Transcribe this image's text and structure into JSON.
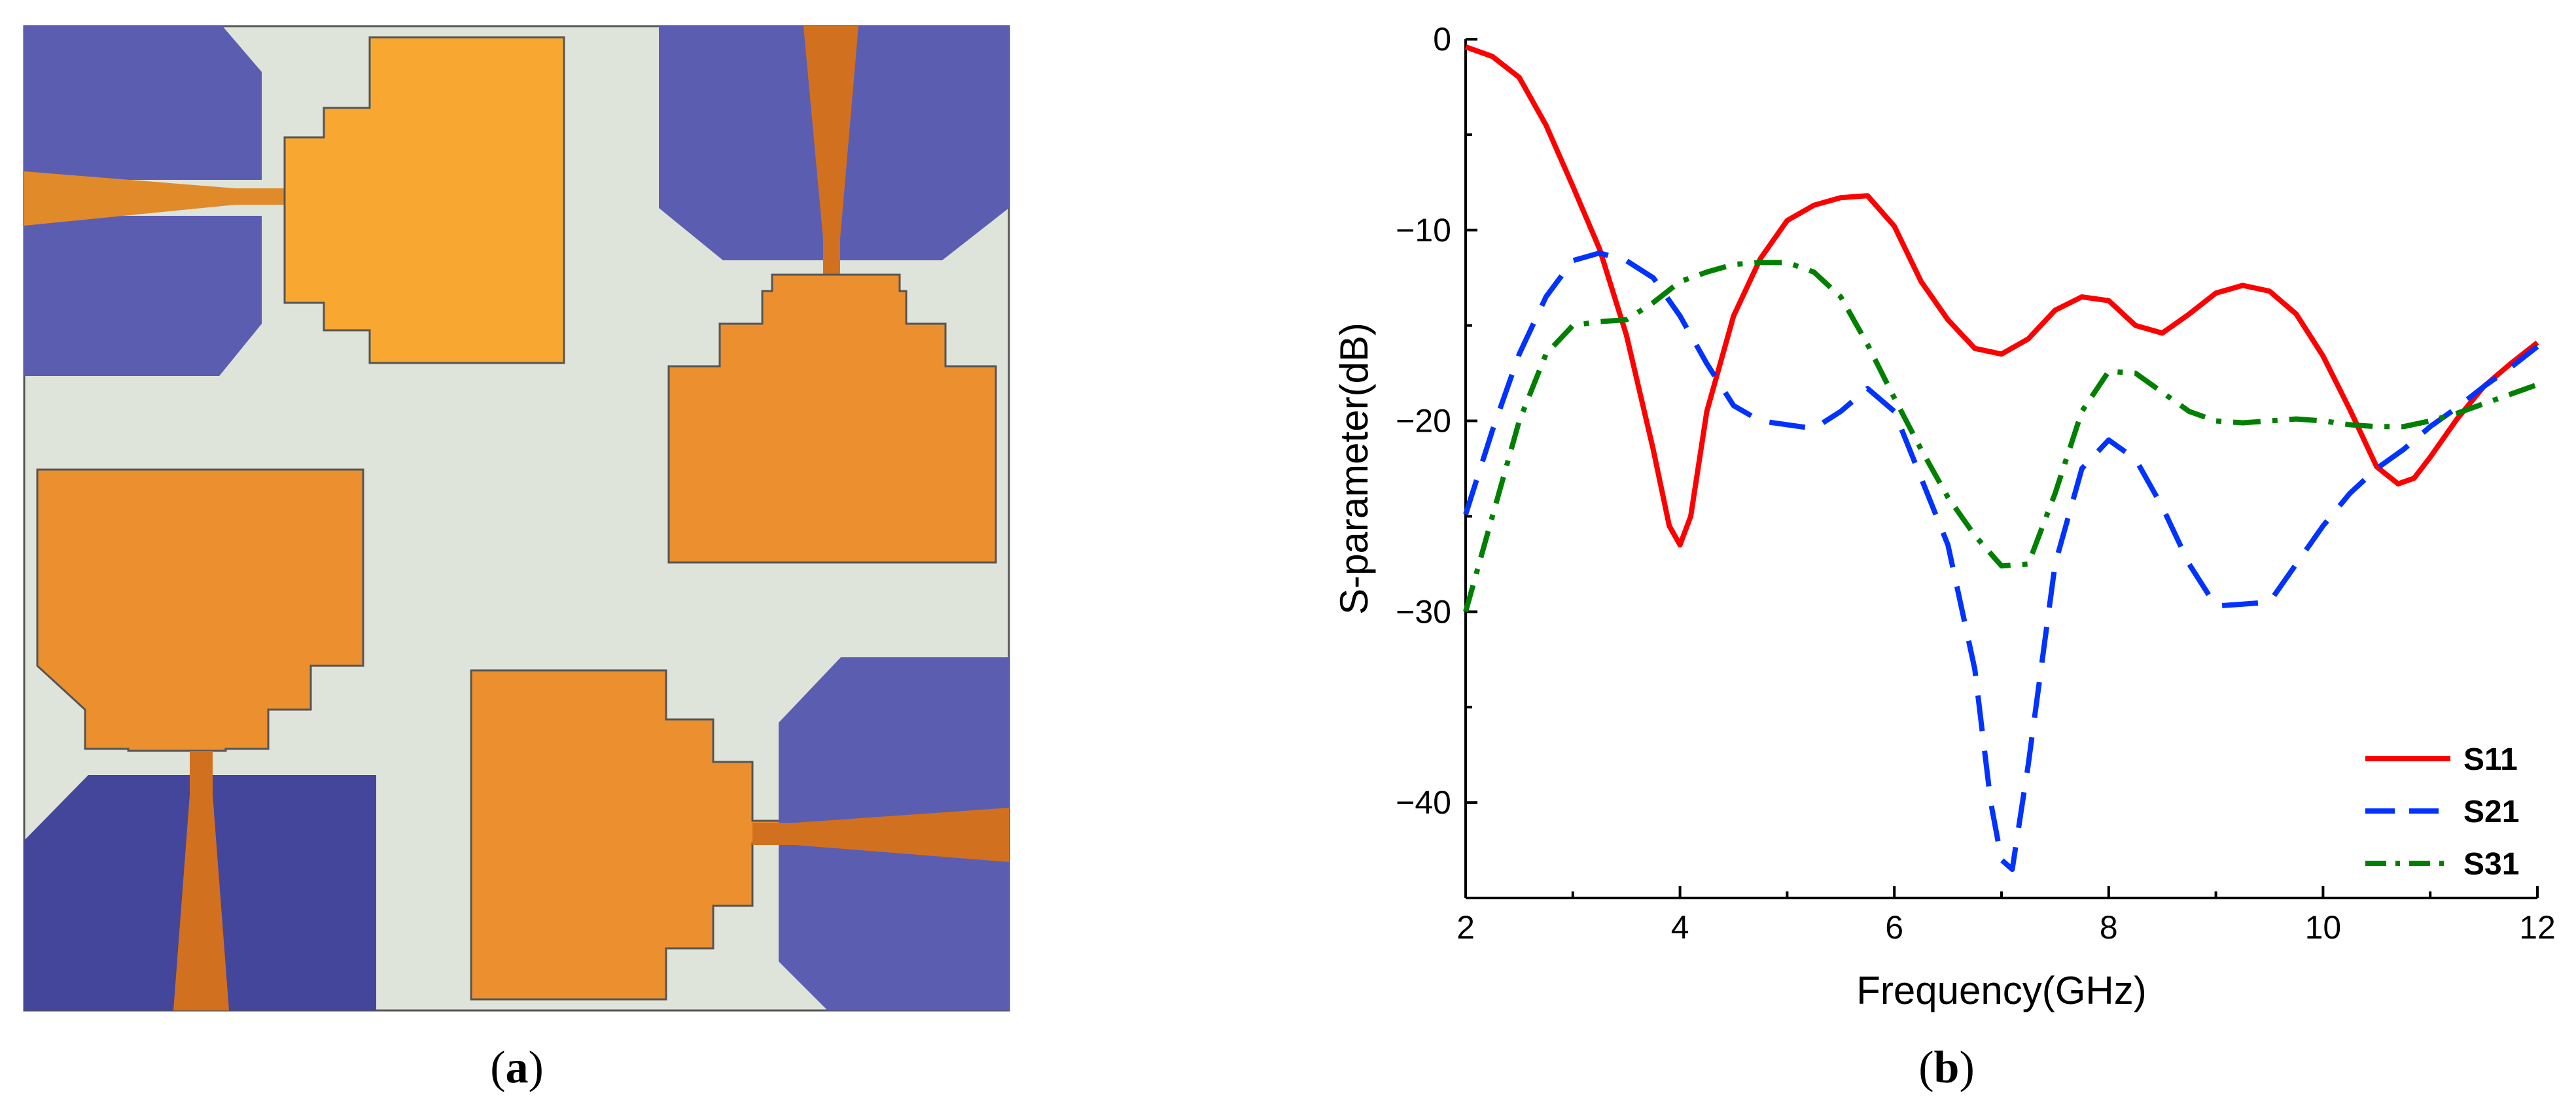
{
  "captions": {
    "a": {
      "open": "(",
      "letter": "a",
      "close": ")"
    },
    "b": {
      "open": "(",
      "letter": "b",
      "close": ")"
    }
  },
  "layout_colors": {
    "background": "#dfe4da",
    "patch": "#ec8f2e",
    "patch_light": "#f8a730",
    "feed": "#d1711f",
    "ground_purple": "#5b5db1",
    "ground_dark": "#43469a",
    "outline": "#555555"
  },
  "chart_data": {
    "type": "line",
    "title": "",
    "xlabel": "Frequency(GHz)",
    "ylabel": "S-parameter(dB)",
    "xlim": [
      2,
      12
    ],
    "ylim": [
      -45,
      0
    ],
    "xticks": [
      2,
      4,
      6,
      8,
      10,
      12
    ],
    "yticks": [
      0,
      -10,
      -20,
      -30,
      -40
    ],
    "ytick_labels": [
      "0",
      "−10",
      "−20",
      "−30",
      "−40"
    ],
    "grid": false,
    "legend_position": "bottom-right",
    "series": [
      {
        "name": "S11",
        "color": "#ff0000",
        "style": "solid",
        "x": [
          2.0,
          2.25,
          2.5,
          2.75,
          3.0,
          3.25,
          3.5,
          3.75,
          3.9,
          4.0,
          4.1,
          4.25,
          4.5,
          4.75,
          5.0,
          5.25,
          5.5,
          5.75,
          6.0,
          6.25,
          6.5,
          6.75,
          7.0,
          7.25,
          7.5,
          7.75,
          8.0,
          8.25,
          8.5,
          8.75,
          9.0,
          9.25,
          9.5,
          9.75,
          10.0,
          10.25,
          10.5,
          10.7,
          10.85,
          11.0,
          11.25,
          11.5,
          11.75,
          12.0
        ],
        "y": [
          -0.4,
          -0.9,
          -2.0,
          -4.5,
          -7.7,
          -11.0,
          -15.5,
          -21.5,
          -25.5,
          -26.5,
          -25.0,
          -19.5,
          -14.5,
          -11.5,
          -9.5,
          -8.7,
          -8.3,
          -8.2,
          -9.8,
          -12.7,
          -14.7,
          -16.2,
          -16.5,
          -15.7,
          -14.2,
          -13.5,
          -13.7,
          -15.0,
          -15.4,
          -14.4,
          -13.3,
          -12.9,
          -13.2,
          -14.4,
          -16.6,
          -19.4,
          -22.4,
          -23.3,
          -23.0,
          -21.9,
          -19.9,
          -18.2,
          -17.0,
          -15.9
        ]
      },
      {
        "name": "S21",
        "color": "#0033ff",
        "style": "dashed",
        "x": [
          2.0,
          2.25,
          2.5,
          2.75,
          3.0,
          3.25,
          3.5,
          3.75,
          4.0,
          4.25,
          4.5,
          4.75,
          5.0,
          5.25,
          5.5,
          5.75,
          6.0,
          6.25,
          6.5,
          6.75,
          6.9,
          7.0,
          7.1,
          7.25,
          7.5,
          7.75,
          8.0,
          8.25,
          8.5,
          8.75,
          9.0,
          9.25,
          9.5,
          9.75,
          10.0,
          10.25,
          10.5,
          10.75,
          11.0,
          11.25,
          11.5,
          11.75,
          12.0
        ],
        "y": [
          -24.9,
          -20.5,
          -16.5,
          -13.5,
          -11.6,
          -11.2,
          -11.6,
          -12.5,
          -14.5,
          -17.0,
          -19.2,
          -20.0,
          -20.2,
          -20.4,
          -19.5,
          -18.3,
          -19.5,
          -23.0,
          -26.5,
          -33.0,
          -40.0,
          -43.0,
          -43.5,
          -38.0,
          -27.5,
          -22.5,
          -21.0,
          -22.0,
          -24.5,
          -27.5,
          -29.7,
          -29.6,
          -29.5,
          -27.5,
          -25.5,
          -23.8,
          -22.5,
          -21.5,
          -20.3,
          -19.3,
          -18.2,
          -17.2,
          -16.1
        ]
      },
      {
        "name": "S31",
        "color": "#008000",
        "style": "dashdot",
        "x": [
          2.0,
          2.25,
          2.5,
          2.75,
          3.0,
          3.25,
          3.5,
          3.75,
          4.0,
          4.25,
          4.5,
          4.75,
          5.0,
          5.25,
          5.5,
          5.75,
          6.0,
          6.25,
          6.5,
          6.75,
          7.0,
          7.25,
          7.5,
          7.75,
          8.0,
          8.25,
          8.5,
          8.75,
          9.0,
          9.25,
          9.5,
          9.75,
          10.0,
          10.25,
          10.5,
          10.75,
          11.0,
          11.25,
          11.5,
          11.75,
          12.0
        ],
        "y": [
          -30.0,
          -25.0,
          -20.0,
          -16.5,
          -15.0,
          -14.8,
          -14.7,
          -13.8,
          -12.7,
          -12.2,
          -11.8,
          -11.7,
          -11.7,
          -12.2,
          -13.5,
          -16.0,
          -18.8,
          -21.5,
          -24.0,
          -26.0,
          -27.6,
          -27.5,
          -23.8,
          -19.5,
          -17.4,
          -17.5,
          -18.5,
          -19.5,
          -20.0,
          -20.1,
          -20.0,
          -19.9,
          -20.0,
          -20.2,
          -20.3,
          -20.3,
          -20.0,
          -19.6,
          -19.1,
          -18.6,
          -18.1
        ]
      }
    ]
  }
}
